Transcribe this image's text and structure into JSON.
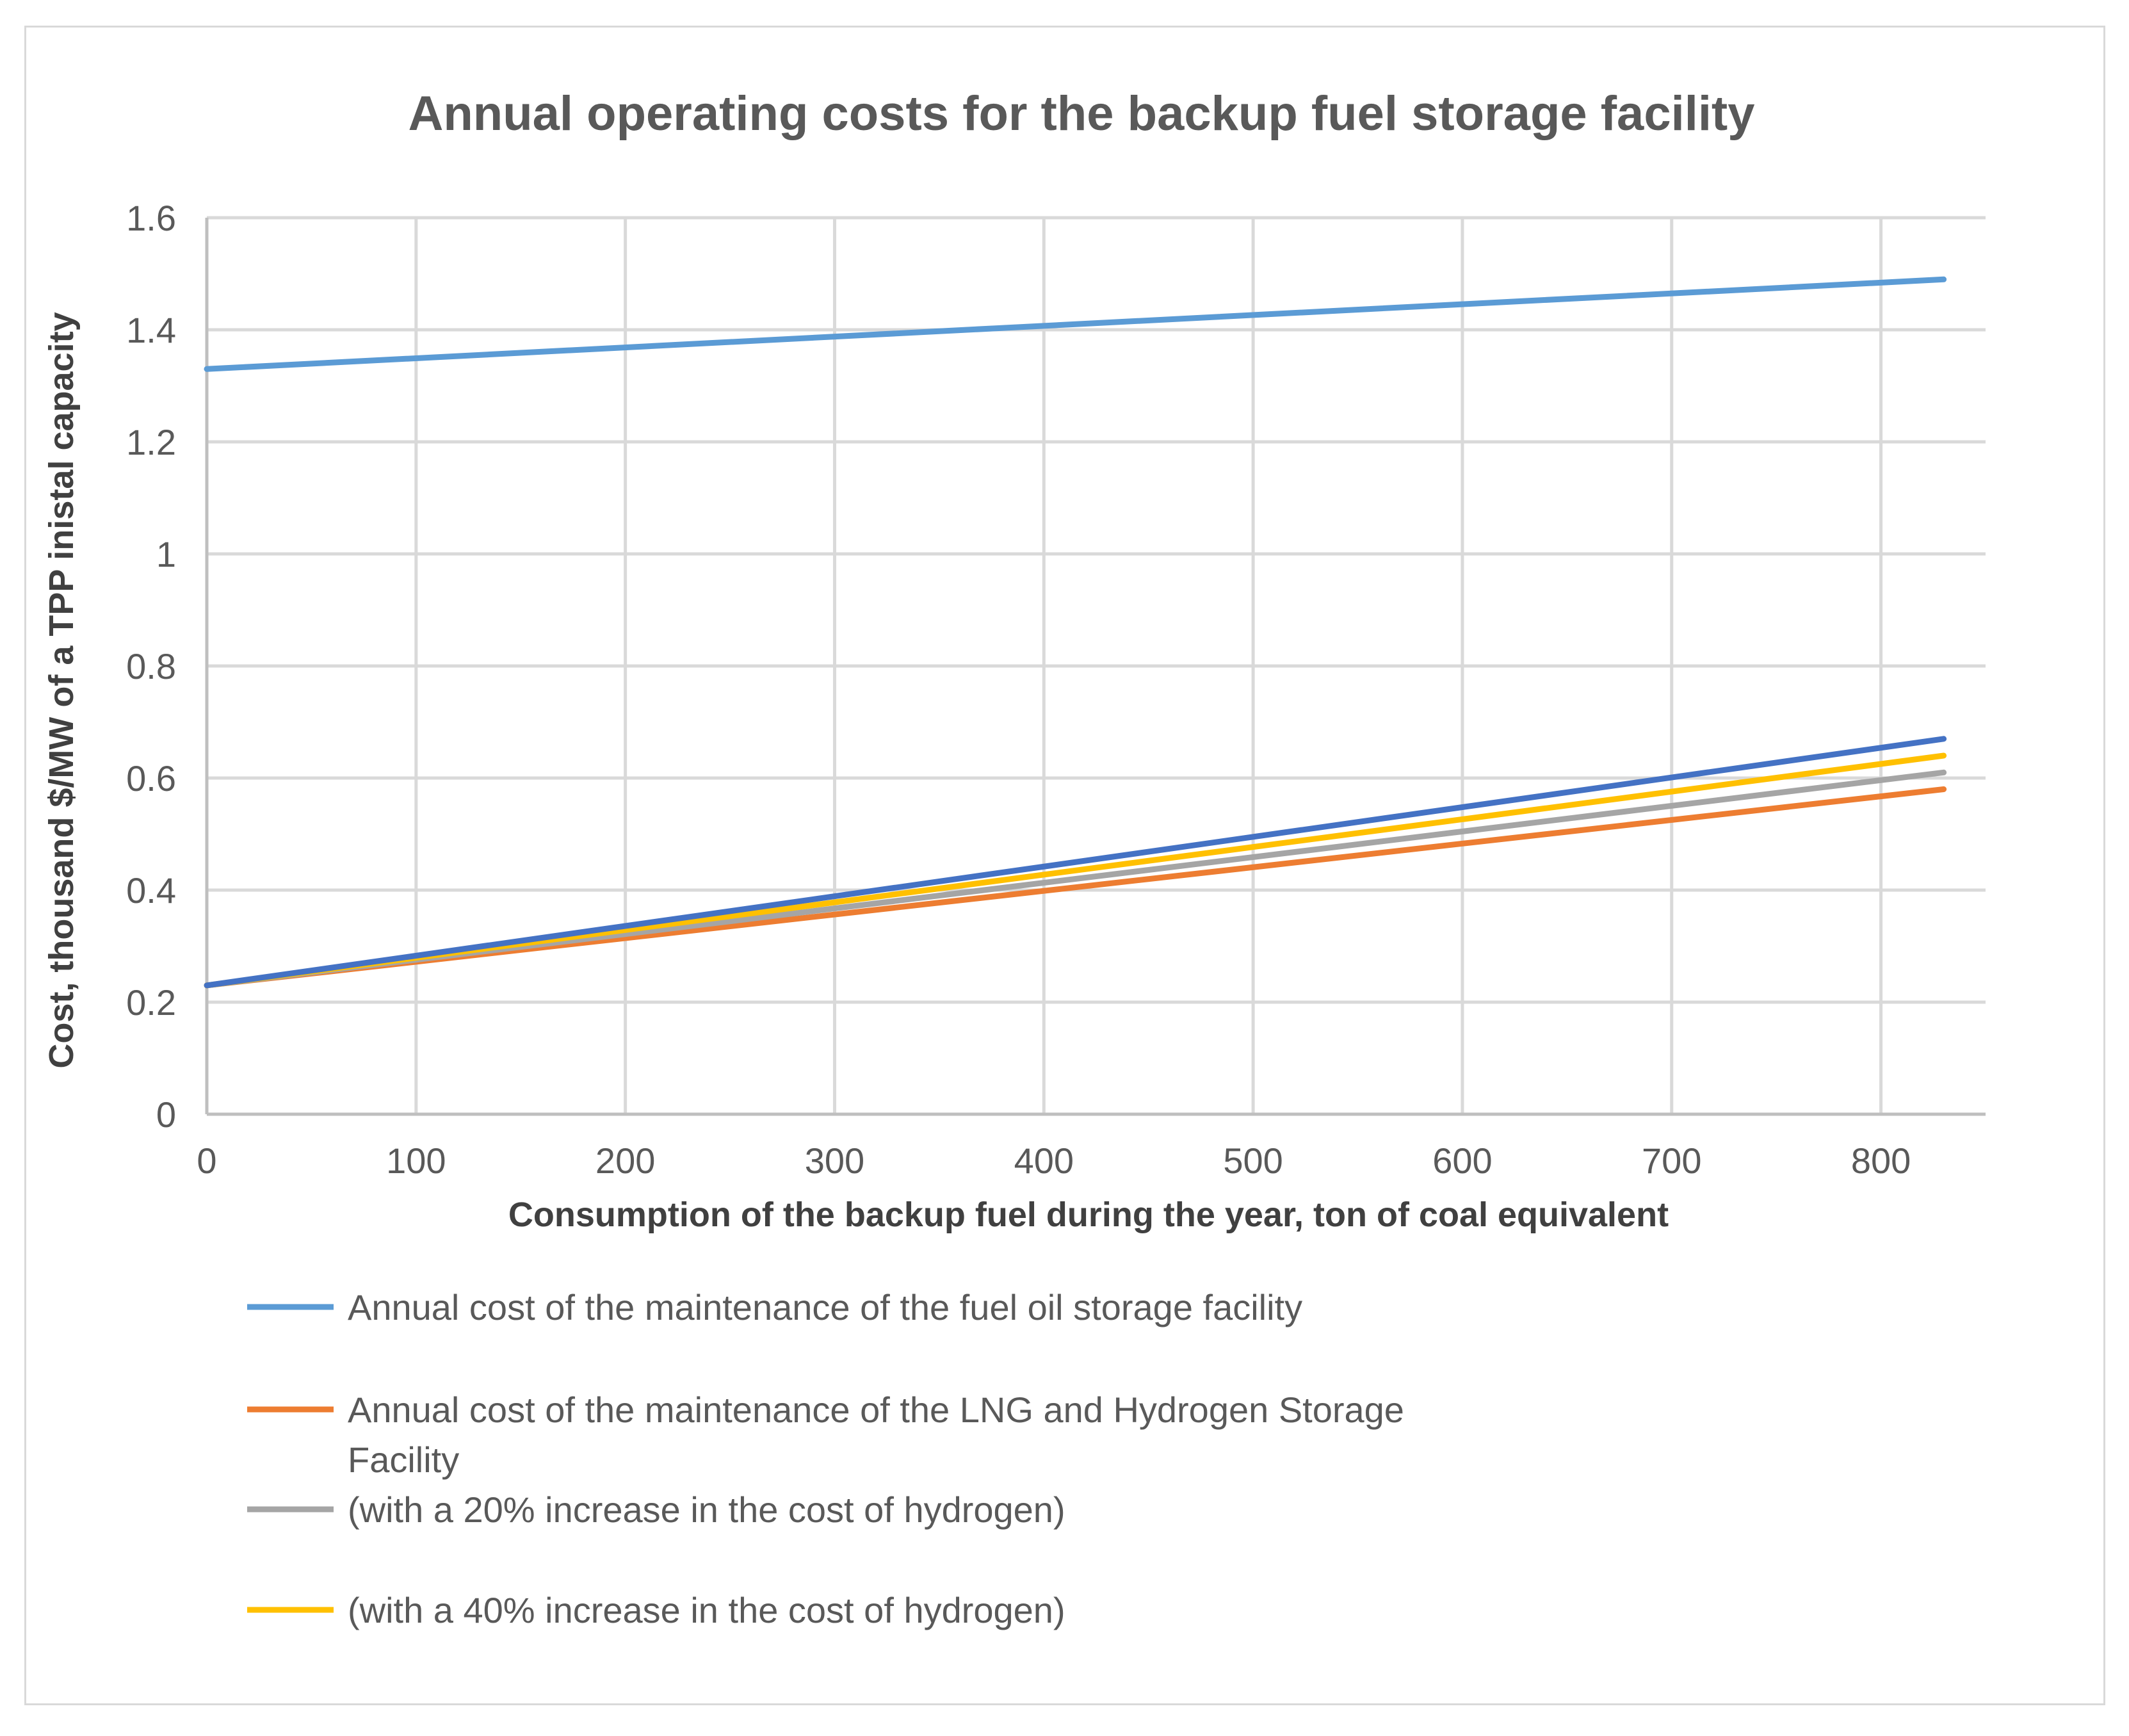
{
  "chart_data": {
    "type": "line",
    "title": "Annual operating costs for the backup fuel storage facility",
    "xlabel": "Consumption of the backup fuel during the year, ton of coal equivalent",
    "ylabel": "Cost, thousand $/MW of a TPP inistal capacity",
    "xlim": [
      0,
      850
    ],
    "ylim": [
      0,
      1.6
    ],
    "xticks": [
      "0",
      "100",
      "200",
      "300",
      "400",
      "500",
      "600",
      "700",
      "800"
    ],
    "yticks": [
      "0",
      "0.2",
      "0.4",
      "0.6",
      "0.8",
      "1",
      "1.2",
      "1.4",
      "1.6"
    ],
    "grid": true,
    "legend_position": "bottom",
    "x": [
      0,
      830
    ],
    "series": [
      {
        "name": "Annual cost of the maintenance of the fuel oil storage facility",
        "color": "#5b9bd5",
        "values": [
          1.33,
          1.49
        ]
      },
      {
        "name": "Annual cost of the maintenance of the LNG and Hydrogen Storage Facility",
        "color": "#ed7d31",
        "values": [
          0.23,
          0.58
        ]
      },
      {
        "name": "(with a 20% increase in the cost of hydrogen)",
        "color": "#a5a5a5",
        "values": [
          0.23,
          0.61
        ]
      },
      {
        "name": "(with a 40% increase in the cost of hydrogen)",
        "color": "#ffc000",
        "values": [
          0.23,
          0.64
        ]
      },
      {
        "name": "",
        "color": "#4472c4",
        "values": [
          0.23,
          0.67
        ]
      }
    ],
    "legend_entries": [
      {
        "series": 0,
        "lines": [
          "Annual cost of the maintenance of the fuel oil storage facility"
        ]
      },
      {
        "series": 1,
        "lines": [
          "Annual cost of the maintenance of the LNG and Hydrogen Storage",
          "Facility"
        ]
      },
      {
        "series": 2,
        "lines": [
          "(with a 20% increase in the cost of hydrogen)"
        ]
      },
      {
        "series": 3,
        "lines": [
          "(with a 40% increase in the cost of hydrogen)"
        ]
      }
    ]
  }
}
